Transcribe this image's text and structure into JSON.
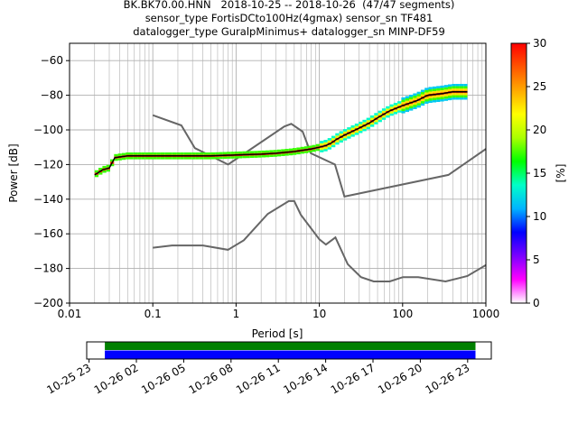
{
  "header": {
    "line1": "BK.BK70.00.HNN   2018-10-25 -- 2018-10-26  (47/47 segments)",
    "line2": "sensor_type FortisDCto100Hz(4gmax) sensor_sn TF481",
    "line3": "datalogger_type GuralpMinimus+ datalogger_sn MINP-DF59"
  },
  "chart_data": [
    {
      "type": "heatmap",
      "title": "BK.BK70.00.HNN   2018-10-25 -- 2018-10-26  (47/47 segments)",
      "xlabel": "Period [s]",
      "ylabel": "Power [dB]",
      "x_scale": "log",
      "xlim": [
        0.01,
        1000
      ],
      "ylim": [
        -200,
        -50
      ],
      "x_ticks": [
        "0.01",
        "0.1",
        "1",
        "10",
        "100",
        "1000"
      ],
      "y_ticks": [
        "−200",
        "−180",
        "−160",
        "−140",
        "−120",
        "−100",
        "−80",
        "−60"
      ],
      "y_tick_values": [
        -200,
        -180,
        -160,
        -140,
        -120,
        -100,
        -80,
        -60
      ],
      "grid": true,
      "colorbar": {
        "label": "[%]",
        "range": [
          0,
          30
        ],
        "ticks": [
          "0",
          "5",
          "10",
          "15",
          "20",
          "25",
          "30"
        ],
        "tick_values": [
          0,
          5,
          10,
          15,
          20,
          25,
          30
        ],
        "colormap": [
          "#ffffff",
          "#ff00ff",
          "#7a00ff",
          "#0000ff",
          "#00b4ff",
          "#00ffc8",
          "#00ff00",
          "#aaff00",
          "#ffff00",
          "#ffaa00",
          "#ff5500",
          "#ff0000"
        ]
      },
      "series": [
        {
          "role": "mode",
          "color": "#000000",
          "x": [
            0.02,
            0.025,
            0.03,
            0.035,
            0.05,
            0.1,
            0.2,
            0.5,
            1,
            2,
            3,
            5,
            8,
            10,
            12,
            14,
            16,
            20,
            30,
            40,
            50,
            70,
            100,
            150,
            200,
            300,
            400,
            500,
            600
          ],
          "y": [
            -126,
            -123,
            -122,
            -116,
            -115,
            -115,
            -115,
            -115,
            -114.5,
            -114,
            -113.5,
            -112.5,
            -111,
            -110,
            -109,
            -107.5,
            -105.5,
            -103,
            -99,
            -96,
            -93,
            -89,
            -86,
            -83,
            -80,
            -79,
            -78,
            -78,
            -78
          ]
        },
        {
          "role": "noise-model-upper",
          "color": "#666666",
          "x": [
            0.1,
            0.22,
            0.32,
            0.8,
            3.8,
            4.6,
            6.3,
            7.9,
            15.4,
            20,
            354.8,
            1000
          ],
          "y": [
            -91.5,
            -97.4,
            -110.5,
            -120,
            -98,
            -96.5,
            -101,
            -113.5,
            -120,
            -138.5,
            -126,
            -111
          ]
        },
        {
          "role": "noise-model-lower",
          "color": "#666666",
          "x": [
            0.1,
            0.17,
            0.4,
            0.8,
            1.24,
            2.4,
            4.3,
            5,
            6,
            10,
            12,
            15.6,
            21.9,
            31.6,
            45,
            70,
            101,
            154,
            328,
            600,
            1000
          ],
          "y": [
            -168,
            -166.7,
            -166.7,
            -169.2,
            -163.7,
            -148.5,
            -141.1,
            -141.1,
            -149,
            -163.2,
            -166.2,
            -162.1,
            -177.5,
            -185,
            -187.5,
            -187.5,
            -185,
            -185,
            -187.5,
            -184.4,
            -178
          ]
        }
      ]
    },
    {
      "type": "timeline",
      "x_ticks": [
        "10-25 23",
        "10-26 02",
        "10-26 05",
        "10-26 08",
        "10-26 11",
        "10-26 14",
        "10-26 17",
        "10-26 20",
        "10-26 23"
      ],
      "x_tick_hours": [
        23,
        26,
        29,
        32,
        35,
        38,
        41,
        44,
        47
      ],
      "xlim_hours": [
        22.85,
        48.5
      ],
      "bars": [
        {
          "row": "top",
          "color": "#008000",
          "start_hour": 24,
          "end_hour": 47.5
        },
        {
          "row": "bottom",
          "color": "#0000ff",
          "start_hour": 24,
          "end_hour": 47.5
        }
      ]
    }
  ]
}
